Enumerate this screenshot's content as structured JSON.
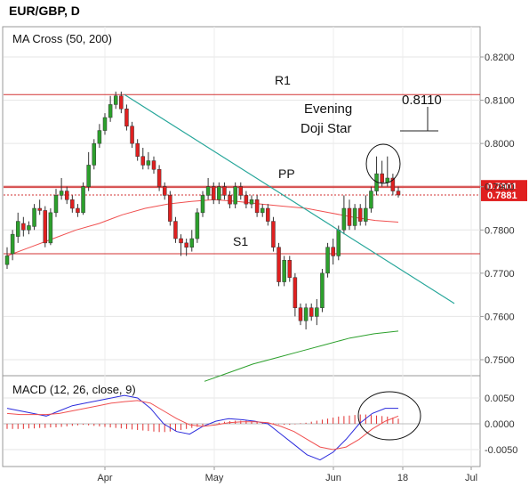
{
  "header": {
    "symbol": "EUR/GBP, D"
  },
  "panels": {
    "main_indicator": "MA Cross (50, 200)",
    "macd_indicator": "MACD (12, 26, close, 9)"
  },
  "annotations": {
    "r1": "R1",
    "pp": "PP",
    "s1": "S1",
    "evening_line1": "Evening",
    "evening_line2": "Doji Star",
    "target": "0.8110"
  },
  "price_tags": [
    "0.7901",
    "0.7881"
  ],
  "colors": {
    "bull": "#2ca02c",
    "bear": "#e02020",
    "level": "#d33333",
    "trend": "#26a69a",
    "ma_red": "#f05050",
    "ma_green": "#2ca02c",
    "macd_blue": "#2b2bdc",
    "signal_red": "#f05050",
    "hist": "#e03030"
  },
  "chart_data": [
    {
      "type": "candlestick",
      "title": "EUR/GBP, D",
      "x_ticks": [
        "Apr",
        "May",
        "Jun",
        "18",
        "Jul"
      ],
      "ylim": [
        0.745,
        0.825
      ],
      "y_ticks": [
        0.75,
        0.76,
        0.77,
        0.78,
        0.79,
        0.8,
        0.81,
        0.82
      ],
      "y_tick_labels": [
        "0.7500",
        "0.7600",
        "0.7700",
        "0.7800",
        "0.7900",
        "0.8000",
        "0.8100",
        "0.8200"
      ],
      "levels": {
        "R1": 0.8113,
        "PP": 0.7898,
        "S1": 0.7745
      },
      "last_prices": [
        0.7901,
        0.7881
      ],
      "trendline": [
        [
          0.8113,
          0.763
        ]
      ],
      "candles": [
        [
          0.772,
          0.774,
          0.776,
          0.771
        ],
        [
          0.7745,
          0.779,
          0.78,
          0.773
        ],
        [
          0.7785,
          0.782,
          0.784,
          0.777
        ],
        [
          0.7815,
          0.78,
          0.783,
          0.7785
        ],
        [
          0.78,
          0.781,
          0.782,
          0.779
        ],
        [
          0.7808,
          0.785,
          0.786,
          0.78
        ],
        [
          0.785,
          0.7845,
          0.787,
          0.7835
        ],
        [
          0.7845,
          0.777,
          0.7855,
          0.776
        ],
        [
          0.777,
          0.784,
          0.785,
          0.7765
        ],
        [
          0.784,
          0.788,
          0.7895,
          0.783
        ],
        [
          0.788,
          0.789,
          0.792,
          0.787
        ],
        [
          0.789,
          0.787,
          0.79,
          0.786
        ],
        [
          0.787,
          0.785,
          0.788,
          0.784
        ],
        [
          0.785,
          0.784,
          0.786,
          0.783
        ],
        [
          0.784,
          0.79,
          0.791,
          0.7835
        ],
        [
          0.79,
          0.795,
          0.798,
          0.789
        ],
        [
          0.795,
          0.8,
          0.801,
          0.794
        ],
        [
          0.8,
          0.803,
          0.8045,
          0.799
        ],
        [
          0.803,
          0.806,
          0.807,
          0.802
        ],
        [
          0.806,
          0.809,
          0.811,
          0.805
        ],
        [
          0.809,
          0.811,
          0.812,
          0.808
        ],
        [
          0.811,
          0.808,
          0.812,
          0.807
        ],
        [
          0.808,
          0.804,
          0.809,
          0.803
        ],
        [
          0.804,
          0.8,
          0.805,
          0.799
        ],
        [
          0.8,
          0.797,
          0.801,
          0.796
        ],
        [
          0.797,
          0.795,
          0.799,
          0.794
        ],
        [
          0.795,
          0.796,
          0.798,
          0.794
        ],
        [
          0.796,
          0.794,
          0.797,
          0.793
        ],
        [
          0.794,
          0.79,
          0.795,
          0.789
        ],
        [
          0.79,
          0.788,
          0.791,
          0.787
        ],
        [
          0.788,
          0.782,
          0.789,
          0.781
        ],
        [
          0.782,
          0.778,
          0.783,
          0.777
        ],
        [
          0.778,
          0.777,
          0.779,
          0.774
        ],
        [
          0.777,
          0.776,
          0.778,
          0.774
        ],
        [
          0.776,
          0.778,
          0.78,
          0.775
        ],
        [
          0.778,
          0.784,
          0.785,
          0.777
        ],
        [
          0.784,
          0.788,
          0.789,
          0.783
        ],
        [
          0.788,
          0.79,
          0.792,
          0.787
        ],
        [
          0.79,
          0.787,
          0.791,
          0.786
        ],
        [
          0.787,
          0.79,
          0.791,
          0.786
        ],
        [
          0.79,
          0.788,
          0.791,
          0.787
        ],
        [
          0.788,
          0.786,
          0.789,
          0.785
        ],
        [
          0.786,
          0.79,
          0.791,
          0.785
        ],
        [
          0.79,
          0.788,
          0.791,
          0.787
        ],
        [
          0.788,
          0.786,
          0.789,
          0.785
        ],
        [
          0.786,
          0.787,
          0.788,
          0.785
        ],
        [
          0.787,
          0.784,
          0.788,
          0.783
        ],
        [
          0.784,
          0.785,
          0.786,
          0.783
        ],
        [
          0.785,
          0.782,
          0.786,
          0.781
        ],
        [
          0.782,
          0.776,
          0.783,
          0.775
        ],
        [
          0.776,
          0.768,
          0.777,
          0.767
        ],
        [
          0.768,
          0.773,
          0.774,
          0.767
        ],
        [
          0.773,
          0.769,
          0.774,
          0.768
        ],
        [
          0.769,
          0.762,
          0.77,
          0.76
        ],
        [
          0.762,
          0.759,
          0.763,
          0.758
        ],
        [
          0.759,
          0.762,
          0.763,
          0.757
        ],
        [
          0.762,
          0.76,
          0.763,
          0.759
        ],
        [
          0.76,
          0.762,
          0.764,
          0.758
        ],
        [
          0.762,
          0.77,
          0.771,
          0.761
        ],
        [
          0.77,
          0.776,
          0.777,
          0.769
        ],
        [
          0.776,
          0.774,
          0.778,
          0.772
        ],
        [
          0.774,
          0.78,
          0.781,
          0.773
        ],
        [
          0.78,
          0.785,
          0.788,
          0.779
        ],
        [
          0.785,
          0.781,
          0.787,
          0.78
        ],
        [
          0.781,
          0.785,
          0.786,
          0.78
        ],
        [
          0.785,
          0.782,
          0.786,
          0.781
        ],
        [
          0.782,
          0.785,
          0.788,
          0.781
        ],
        [
          0.785,
          0.789,
          0.79,
          0.784
        ],
        [
          0.789,
          0.793,
          0.797,
          0.788
        ],
        [
          0.793,
          0.791,
          0.796,
          0.79
        ],
        [
          0.791,
          0.792,
          0.797,
          0.79
        ],
        [
          0.792,
          0.789,
          0.793,
          0.788
        ],
        [
          0.789,
          0.7881,
          0.79,
          0.7875
        ]
      ],
      "ma_50": [
        0.774,
        0.776,
        0.778,
        0.78,
        0.7815,
        0.7835,
        0.785,
        0.786,
        0.7866,
        0.787,
        0.7866,
        0.786,
        0.7855,
        0.785,
        0.784,
        0.783,
        0.7822,
        0.7818
      ],
      "ma_200": [
        0.745,
        0.747,
        0.749,
        0.7505,
        0.752,
        0.7535,
        0.755,
        0.756,
        0.7566
      ]
    },
    {
      "type": "macd",
      "title": "MACD (12, 26, close, 9)",
      "ylim": [
        -0.008,
        0.008
      ],
      "y_ticks": [
        0.005,
        0.0,
        -0.005
      ],
      "y_tick_labels": [
        "0.0050",
        "0.0000",
        "-0.0050"
      ],
      "macd": [
        0.003,
        0.0025,
        0.002,
        0.0015,
        0.0025,
        0.0035,
        0.004,
        0.0045,
        0.005,
        0.0055,
        0.005,
        0.003,
        0.0,
        -0.0015,
        -0.002,
        -0.0005,
        0.0005,
        0.001,
        0.0008,
        0.0005,
        0.0,
        -0.002,
        -0.004,
        -0.006,
        -0.007,
        -0.0055,
        -0.003,
        0.0,
        0.002,
        0.003,
        0.003
      ],
      "signal": [
        0.002,
        0.0018,
        0.0018,
        0.0018,
        0.002,
        0.0025,
        0.003,
        0.0035,
        0.004,
        0.0043,
        0.0045,
        0.004,
        0.0025,
        0.001,
        -0.0002,
        -0.0005,
        -0.0002,
        0.0002,
        0.0004,
        0.0004,
        0.0002,
        -0.0005,
        -0.0015,
        -0.003,
        -0.0045,
        -0.005,
        -0.0045,
        -0.003,
        -0.001,
        0.0005,
        0.0015
      ],
      "histogram": [
        -0.001,
        -0.001,
        -0.001,
        -0.001,
        -0.0009,
        -0.0009,
        -0.0008,
        -0.0008,
        -0.0007,
        -0.0007,
        -0.0006,
        -0.0005,
        -0.0004,
        -0.0003,
        -0.0002,
        -0.0003,
        -0.0004,
        -0.0005,
        -0.0006,
        -0.0007,
        -0.0008,
        -0.0009,
        -0.001,
        -0.0011,
        -0.0012,
        -0.0013,
        -0.0014,
        -0.0015,
        -0.0016,
        -0.0016,
        -0.0015,
        -0.0014,
        -0.0012,
        -0.001,
        -0.0008,
        -0.0006,
        -0.0004,
        -0.0002,
        0.0,
        0.0002,
        0.0004,
        0.0005,
        0.0006,
        0.0006,
        0.0006,
        0.0005,
        0.0004,
        0.0003,
        0.0002,
        0.0001,
        -0.0001,
        -0.0002,
        -0.0002,
        -0.0001,
        0.0001,
        0.0002,
        0.0004,
        0.0006,
        0.0008,
        0.001,
        0.0012,
        0.0014,
        0.0015,
        0.0016,
        0.0017,
        0.0018,
        0.0018,
        0.0017,
        0.0016,
        0.0015,
        0.0014,
        0.0012,
        0.001
      ]
    }
  ]
}
